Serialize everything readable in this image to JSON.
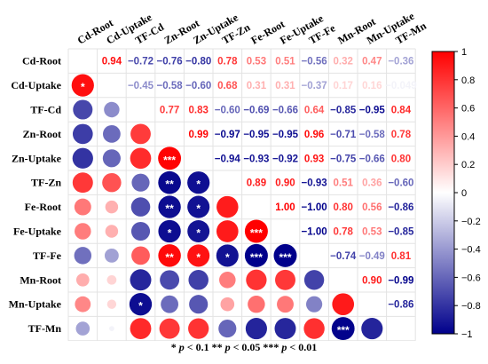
{
  "chart_data": {
    "type": "correlogram",
    "variables": [
      "Cd-Root",
      "Cd-Uptake",
      "TF-Cd",
      "Zn-Root",
      "Zn-Uptake",
      "TF-Zn",
      "Fe-Root",
      "Fe-Uptake",
      "TF-Fe",
      "Mn-Root",
      "Mn-Uptake",
      "TF-Mn"
    ],
    "upper_triangle_labels": [
      [
        "",
        "0.94",
        "−0.72",
        "−0.76",
        "−0.80",
        "0.78",
        "0.53",
        "0.51",
        "−0.56",
        "0.32",
        "0.47",
        "−0.36"
      ],
      [
        "",
        "",
        "−0.45",
        "−0.58",
        "−0.60",
        "0.68",
        "0.31",
        "0.31",
        "−0.37",
        "0.17",
        "0.16",
        "−0.049"
      ],
      [
        "",
        "",
        "",
        "0.77",
        "0.83",
        "−0.60",
        "−0.69",
        "−0.66",
        "0.64",
        "−0.85",
        "−0.95",
        "0.84"
      ],
      [
        "",
        "",
        "",
        "",
        "0.99",
        "−0.97",
        "−0.95",
        "−0.95",
        "0.96",
        "−0.71",
        "−0.58",
        "0.78"
      ],
      [
        "",
        "",
        "",
        "",
        "",
        "−0.94",
        "−0.93",
        "−0.92",
        "0.93",
        "−0.75",
        "−0.66",
        "0.80"
      ],
      [
        "",
        "",
        "",
        "",
        "",
        "",
        "0.89",
        "0.90",
        "−0.93",
        "0.51",
        "0.36",
        "−0.60"
      ],
      [
        "",
        "",
        "",
        "",
        "",
        "",
        "",
        "1.00",
        "−1.00",
        "0.80",
        "0.56",
        "−0.86"
      ],
      [
        "",
        "",
        "",
        "",
        "",
        "",
        "",
        "",
        "−1.00",
        "0.78",
        "0.53",
        "−0.85"
      ],
      [
        "",
        "",
        "",
        "",
        "",
        "",
        "",
        "",
        "",
        "−0.74",
        "−0.49",
        "0.81"
      ],
      [
        "",
        "",
        "",
        "",
        "",
        "",
        "",
        "",
        "",
        "",
        "0.90",
        "−0.99"
      ],
      [
        "",
        "",
        "",
        "",
        "",
        "",
        "",
        "",
        "",
        "",
        "",
        "−0.86"
      ],
      [
        "",
        "",
        "",
        "",
        "",
        "",
        "",
        "",
        "",
        "",
        "",
        ""
      ]
    ],
    "matrix": [
      [
        1.0,
        0.94,
        -0.72,
        -0.76,
        -0.8,
        0.78,
        0.53,
        0.51,
        -0.56,
        0.32,
        0.47,
        -0.36
      ],
      [
        0.94,
        1.0,
        -0.45,
        -0.58,
        -0.6,
        0.68,
        0.31,
        0.31,
        -0.37,
        0.17,
        0.16,
        -0.049
      ],
      [
        -0.72,
        -0.45,
        1.0,
        0.77,
        0.83,
        -0.6,
        -0.69,
        -0.66,
        0.64,
        -0.85,
        -0.95,
        0.84
      ],
      [
        -0.76,
        -0.58,
        0.77,
        1.0,
        0.99,
        -0.97,
        -0.95,
        -0.95,
        0.96,
        -0.71,
        -0.58,
        0.78
      ],
      [
        -0.8,
        -0.6,
        0.83,
        0.99,
        1.0,
        -0.94,
        -0.93,
        -0.92,
        0.93,
        -0.75,
        -0.66,
        0.8
      ],
      [
        0.78,
        0.68,
        -0.6,
        -0.97,
        -0.94,
        1.0,
        0.89,
        0.9,
        -0.93,
        0.51,
        0.36,
        -0.6
      ],
      [
        0.53,
        0.31,
        -0.69,
        -0.95,
        -0.93,
        0.89,
        1.0,
        1.0,
        -1.0,
        0.8,
        0.56,
        -0.86
      ],
      [
        0.51,
        0.31,
        -0.66,
        -0.95,
        -0.92,
        0.9,
        1.0,
        1.0,
        -1.0,
        0.78,
        0.53,
        -0.85
      ],
      [
        -0.56,
        -0.37,
        0.64,
        0.96,
        0.93,
        -0.93,
        -1.0,
        -1.0,
        1.0,
        -0.74,
        -0.49,
        0.81
      ],
      [
        0.32,
        0.17,
        -0.85,
        -0.71,
        -0.75,
        0.51,
        0.8,
        0.78,
        -0.74,
        1.0,
        0.9,
        -0.99
      ],
      [
        0.47,
        0.16,
        -0.95,
        -0.58,
        -0.66,
        0.36,
        0.56,
        0.53,
        -0.49,
        0.9,
        1.0,
        -0.86
      ],
      [
        -0.36,
        -0.049,
        0.84,
        0.78,
        0.8,
        -0.6,
        -0.86,
        -0.85,
        0.81,
        -0.99,
        -0.86,
        1.0
      ]
    ],
    "significance": [
      {
        "row": 1,
        "col": 0,
        "mark": "*"
      },
      {
        "row": 4,
        "col": 3,
        "mark": "***"
      },
      {
        "row": 5,
        "col": 3,
        "mark": "**"
      },
      {
        "row": 5,
        "col": 4,
        "mark": "*"
      },
      {
        "row": 6,
        "col": 3,
        "mark": "**"
      },
      {
        "row": 6,
        "col": 4,
        "mark": "*"
      },
      {
        "row": 7,
        "col": 3,
        "mark": "*"
      },
      {
        "row": 7,
        "col": 4,
        "mark": "*"
      },
      {
        "row": 7,
        "col": 6,
        "mark": "***"
      },
      {
        "row": 8,
        "col": 3,
        "mark": "**"
      },
      {
        "row": 8,
        "col": 4,
        "mark": "*"
      },
      {
        "row": 8,
        "col": 5,
        "mark": "*"
      },
      {
        "row": 8,
        "col": 6,
        "mark": "***"
      },
      {
        "row": 8,
        "col": 7,
        "mark": "***"
      },
      {
        "row": 10,
        "col": 2,
        "mark": "*"
      },
      {
        "row": 11,
        "col": 9,
        "mark": "***"
      }
    ],
    "colorbar": {
      "ticks": [
        "1",
        "0.8",
        "0.6",
        "0.4",
        "0.2",
        "0",
        "−0.2",
        "−0.4",
        "−0.6",
        "−0.8",
        "−1"
      ],
      "tick_values": [
        1,
        0.8,
        0.6,
        0.4,
        0.2,
        0,
        -0.2,
        -0.4,
        -0.6,
        -0.8,
        -1
      ],
      "range": [
        -1,
        1
      ]
    },
    "colors": {
      "positive": "#ff0000",
      "negative": "#00008b",
      "neutral": "#ffffff"
    }
  },
  "caption": {
    "p1": "p",
    "t1": " < 0.1 ",
    "m1": "*",
    "m2": "**",
    "p2": "p",
    "t2": " < 0.05 ",
    "m3": "***",
    "p3": "p",
    "t3": " < 0.01"
  }
}
